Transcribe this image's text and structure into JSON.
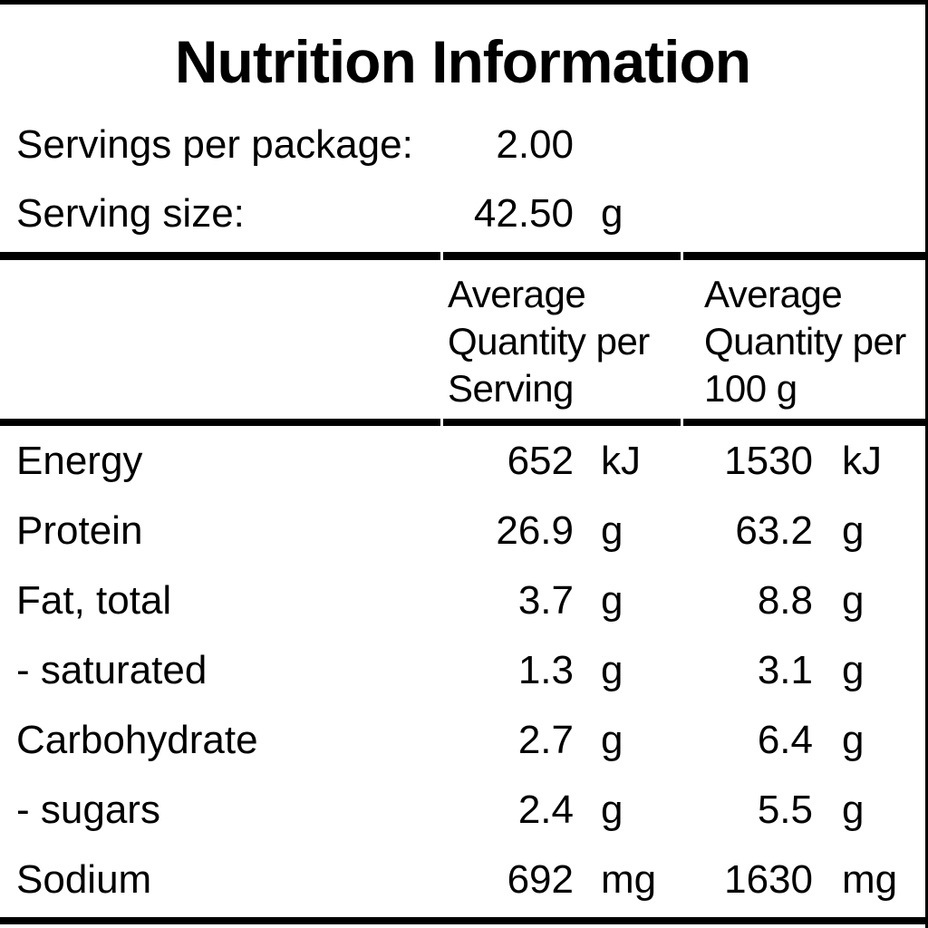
{
  "panel": {
    "title": "Nutrition Information",
    "colors": {
      "text": "#000000",
      "background": "#ffffff",
      "rule": "#000000"
    },
    "serving_info": {
      "servings_label": "Servings per package:",
      "servings_value": "2.00",
      "serving_size_label": "Serving size:",
      "serving_size_value": "42.50",
      "serving_size_unit": "g"
    },
    "columns": {
      "per_serving_header": "Average Quantity per Serving",
      "per_100g_header": "Average Quantity per 100 g"
    },
    "rows": [
      {
        "label": "Energy",
        "per_serving": "652",
        "per_serving_unit": "kJ",
        "per_100g": "1530",
        "per_100g_unit": "kJ"
      },
      {
        "label": "Protein",
        "per_serving": "26.9",
        "per_serving_unit": "g",
        "per_100g": "63.2",
        "per_100g_unit": "g"
      },
      {
        "label": "Fat, total",
        "per_serving": "3.7",
        "per_serving_unit": "g",
        "per_100g": "8.8",
        "per_100g_unit": "g"
      },
      {
        "label": "- saturated",
        "per_serving": "1.3",
        "per_serving_unit": "g",
        "per_100g": "3.1",
        "per_100g_unit": "g"
      },
      {
        "label": "Carbohydrate",
        "per_serving": "2.7",
        "per_serving_unit": "g",
        "per_100g": "6.4",
        "per_100g_unit": "g"
      },
      {
        "label": "- sugars",
        "per_serving": "2.4",
        "per_serving_unit": "g",
        "per_100g": "5.5",
        "per_100g_unit": "g"
      },
      {
        "label": "Sodium",
        "per_serving": "692",
        "per_serving_unit": "mg",
        "per_100g": "1630",
        "per_100g_unit": "mg"
      }
    ]
  }
}
